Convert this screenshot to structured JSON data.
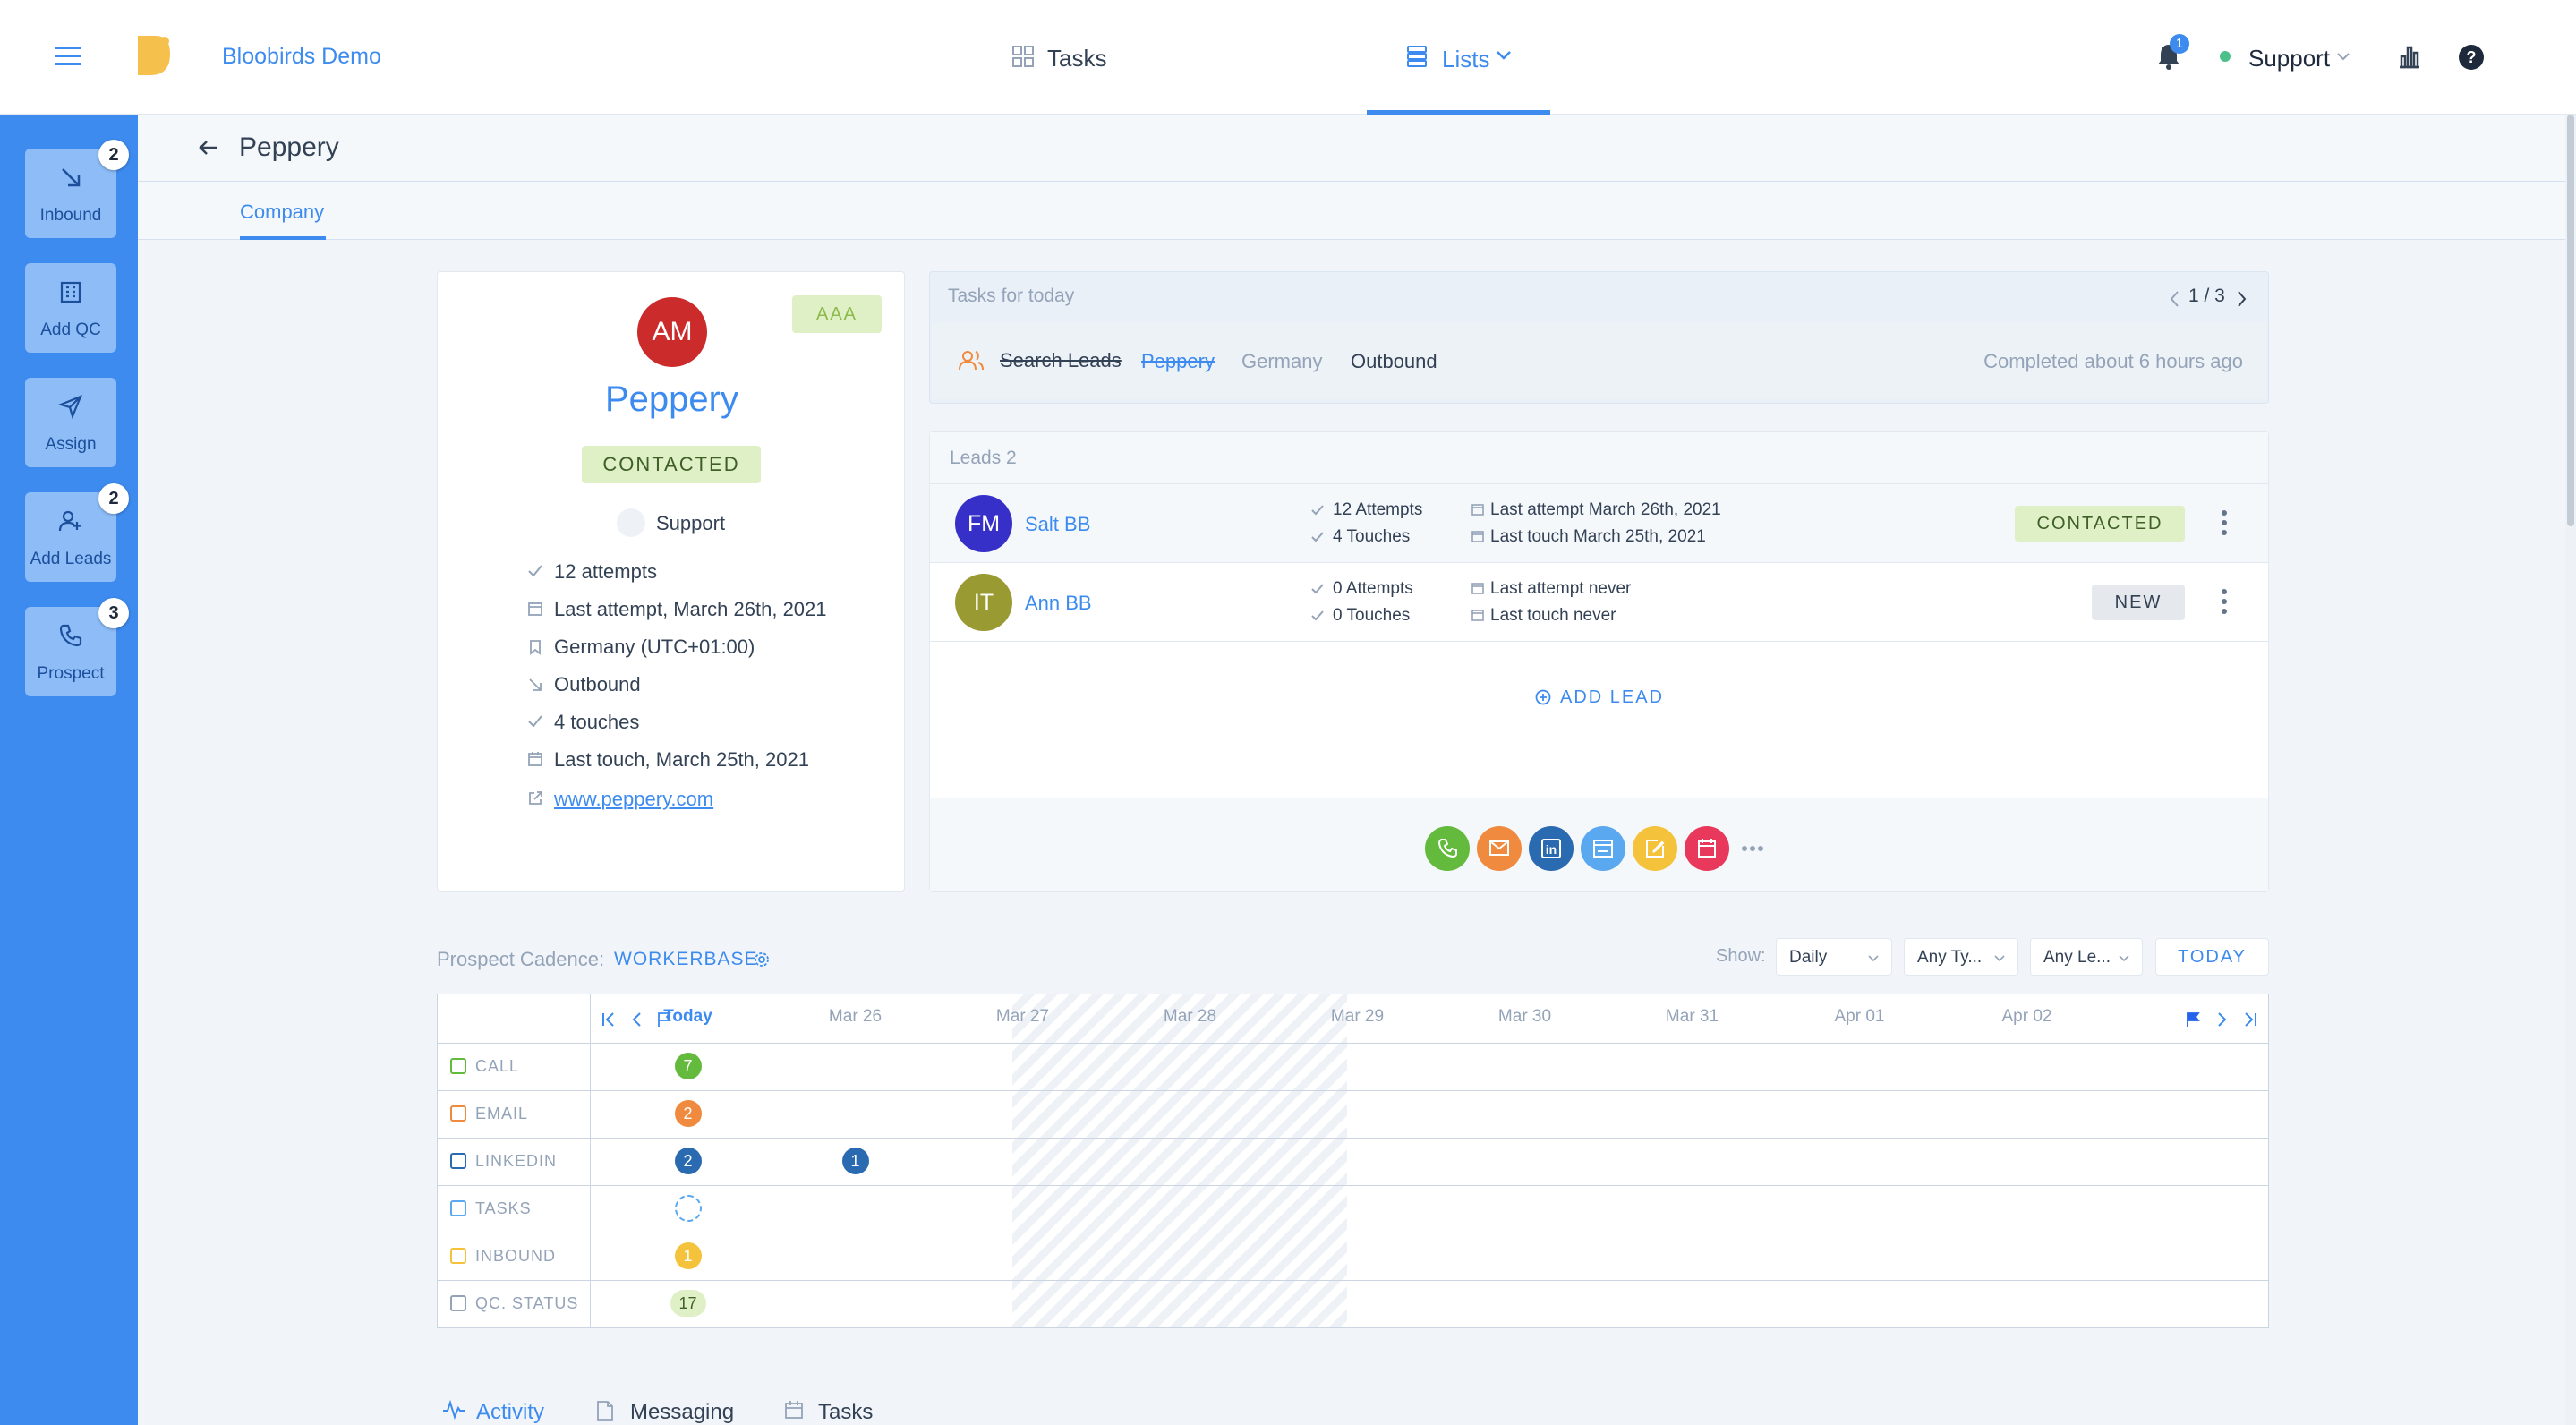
{
  "app": {
    "company_name": "Bloobirds Demo",
    "nav_tasks": "Tasks",
    "nav_lists": "Lists",
    "notification_count": "1",
    "user": "Support",
    "accent": "#3d8bef"
  },
  "sidebar": {
    "items": [
      {
        "label": "Inbound",
        "badge": "2",
        "icon": "arrow-down-right-icon"
      },
      {
        "label": "Add QC",
        "badge": "",
        "icon": "building-icon"
      },
      {
        "label": "Assign",
        "badge": "",
        "icon": "send-icon"
      },
      {
        "label": "Add Leads",
        "badge": "2",
        "icon": "user-plus-icon"
      },
      {
        "label": "Prospect",
        "badge": "3",
        "icon": "phone-icon"
      }
    ]
  },
  "page": {
    "title": "Peppery",
    "tab": "Company"
  },
  "company": {
    "initials": "AM",
    "name": "Peppery",
    "tier": "AAA",
    "status": "CONTACTED",
    "owner": "Support",
    "attempts": "12 attempts",
    "last_attempt": "Last attempt, March 26th, 2021",
    "timezone": "Germany (UTC+01:00)",
    "source": "Outbound",
    "touches": "4 touches",
    "last_touch": "Last touch, March 25th, 2021",
    "website": "www.peppery.com"
  },
  "tasks_today": {
    "header": "Tasks for today",
    "pager": "1 / 3",
    "task_name": "Search Leads",
    "task_company": "Peppery",
    "task_country": "Germany",
    "task_source": "Outbound",
    "completed": "Completed about 6 hours ago"
  },
  "leads": {
    "header": "Leads 2",
    "items": [
      {
        "initials": "FM",
        "name": "Salt BB",
        "attempts": "12 Attempts",
        "touches": "4 Touches",
        "last_attempt": "Last attempt March 26th, 2021",
        "last_touch": "Last touch March 25th, 2021",
        "status": "CONTACTED",
        "avatar_color": "#3730c8"
      },
      {
        "initials": "IT",
        "name": "Ann BB",
        "attempts": "0 Attempts",
        "touches": "0 Touches",
        "last_attempt": "Last attempt never",
        "last_touch": "Last touch never",
        "status": "NEW",
        "avatar_color": "#9a9a32"
      }
    ],
    "add_lead": "ADD LEAD",
    "actions": [
      {
        "icon": "phone-icon",
        "color": "#63ba3c"
      },
      {
        "icon": "mail-icon",
        "color": "#f08a3e"
      },
      {
        "icon": "linkedin-icon",
        "color": "#2a6ab1"
      },
      {
        "icon": "calendar-task-icon",
        "color": "#5aa9f0"
      },
      {
        "icon": "note-icon",
        "color": "#f5c33b"
      },
      {
        "icon": "meeting-icon",
        "color": "#e8395c"
      }
    ]
  },
  "cadence": {
    "label": "Prospect Cadence:",
    "name": "WORKERBASE",
    "show_label": "Show:",
    "filter_period": "Daily",
    "filter_type": "Any Ty...",
    "filter_lead": "Any Le...",
    "today_button": "TODAY",
    "dates": [
      "Today",
      "Mar 26",
      "Mar 27",
      "Mar 28",
      "Mar 29",
      "Mar 30",
      "Mar 31",
      "Apr 01",
      "Apr 02"
    ],
    "rows": [
      {
        "label": "CALL",
        "icon": "phone-icon",
        "color": "#63ba3c",
        "cells": [
          {
            "col": 0,
            "value": "7"
          }
        ]
      },
      {
        "label": "EMAIL",
        "icon": "mail-icon",
        "color": "#f08a3e",
        "cells": [
          {
            "col": 0,
            "value": "2"
          }
        ]
      },
      {
        "label": "LINKEDIN",
        "icon": "linkedin-icon",
        "color": "#2a6ab1",
        "cells": [
          {
            "col": 0,
            "value": "2"
          },
          {
            "col": 1,
            "value": "1"
          }
        ]
      },
      {
        "label": "TASKS",
        "icon": "calendar-task-icon",
        "color": "#5aa9f0",
        "cells": [
          {
            "col": 0,
            "value": ""
          }
        ]
      },
      {
        "label": "INBOUND",
        "icon": "arrow-down-right-icon",
        "color": "#f5c33b",
        "cells": [
          {
            "col": 0,
            "value": "1"
          }
        ]
      },
      {
        "label": "QC. STATUS",
        "icon": "building-icon",
        "color": "#94a3b8",
        "cells": [
          {
            "col": 0,
            "value": "17"
          }
        ]
      }
    ]
  },
  "bottom_tabs": [
    "Activity",
    "Messaging",
    "Tasks"
  ]
}
